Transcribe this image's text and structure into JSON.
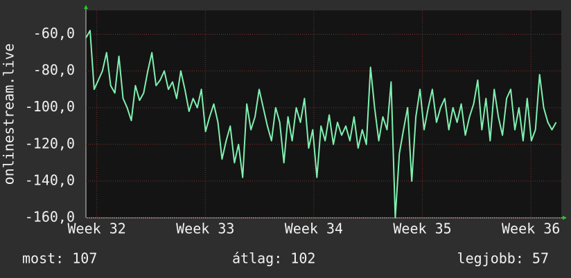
{
  "chart_data": {
    "type": "line",
    "ylabel": "onlinestream.live",
    "color": "#80f0b0",
    "grid": true,
    "ylim": [
      -160,
      -47
    ],
    "yticks": [
      {
        "value": -60,
        "label": "-60,0"
      },
      {
        "value": -80,
        "label": "-80,0"
      },
      {
        "value": -100,
        "label": "-100,0"
      },
      {
        "value": -120,
        "label": "-120,0"
      },
      {
        "value": -140,
        "label": "-140,0"
      },
      {
        "value": -160,
        "label": "-160,0"
      }
    ],
    "xlim": [
      31.9,
      36.28
    ],
    "xticks": [
      {
        "value": 32,
        "label": "Week 32"
      },
      {
        "value": 33,
        "label": "Week 33"
      },
      {
        "value": 34,
        "label": "Week 34"
      },
      {
        "value": 35,
        "label": "Week 35"
      },
      {
        "value": 36,
        "label": "Week 36"
      }
    ],
    "stats": [
      "most: 107",
      "átlag: 102",
      "legjobb: 57"
    ],
    "x": [
      31.9,
      31.938,
      31.976,
      32.014,
      32.052,
      32.09,
      32.128,
      32.166,
      32.204,
      32.242,
      32.28,
      32.318,
      32.356,
      32.394,
      32.432,
      32.47,
      32.508,
      32.546,
      32.584,
      32.622,
      32.66,
      32.698,
      32.736,
      32.774,
      32.812,
      32.85,
      32.888,
      32.926,
      32.964,
      33.002,
      33.04,
      33.078,
      33.116,
      33.154,
      33.192,
      33.23,
      33.268,
      33.306,
      33.344,
      33.382,
      33.42,
      33.458,
      33.496,
      33.534,
      33.572,
      33.61,
      33.648,
      33.686,
      33.724,
      33.762,
      33.8,
      33.838,
      33.876,
      33.914,
      33.952,
      33.99,
      34.028,
      34.066,
      34.104,
      34.142,
      34.18,
      34.218,
      34.256,
      34.294,
      34.332,
      34.37,
      34.408,
      34.446,
      34.484,
      34.522,
      34.56,
      34.598,
      34.636,
      34.674,
      34.712,
      34.75,
      34.788,
      34.826,
      34.864,
      34.902,
      34.94,
      34.978,
      35.016,
      35.054,
      35.092,
      35.13,
      35.168,
      35.206,
      35.244,
      35.282,
      35.32,
      35.358,
      35.396,
      35.434,
      35.472,
      35.51,
      35.548,
      35.586,
      35.624,
      35.662,
      35.7,
      35.738,
      35.776,
      35.814,
      35.852,
      35.89,
      35.928,
      35.966,
      36.004,
      36.042,
      36.08,
      36.118,
      36.156,
      36.194,
      36.232
    ],
    "values": [
      -62,
      -58,
      -90,
      -85,
      -80,
      -70,
      -88,
      -92,
      -72,
      -95,
      -100,
      -107,
      -88,
      -96,
      -92,
      -80,
      -70,
      -88,
      -85,
      -80,
      -90,
      -86,
      -95,
      -80,
      -90,
      -102,
      -95,
      -100,
      -90,
      -113,
      -105,
      -98,
      -108,
      -128,
      -118,
      -110,
      -130,
      -120,
      -138,
      -98,
      -112,
      -105,
      -90,
      -100,
      -110,
      -118,
      -100,
      -108,
      -130,
      -105,
      -118,
      -100,
      -108,
      -95,
      -122,
      -112,
      -138,
      -110,
      -118,
      -104,
      -120,
      -108,
      -115,
      -110,
      -118,
      -105,
      -122,
      -112,
      -120,
      -78,
      -100,
      -118,
      -105,
      -112,
      -86,
      -160,
      -125,
      -112,
      -100,
      -140,
      -105,
      -90,
      -112,
      -100,
      -90,
      -108,
      -100,
      -95,
      -112,
      -100,
      -108,
      -98,
      -115,
      -105,
      -98,
      -85,
      -112,
      -95,
      -118,
      -90,
      -105,
      -115,
      -95,
      -90,
      -112,
      -100,
      -118,
      -95,
      -118,
      -112,
      -82,
      -100,
      -108,
      -112,
      -108
    ]
  }
}
